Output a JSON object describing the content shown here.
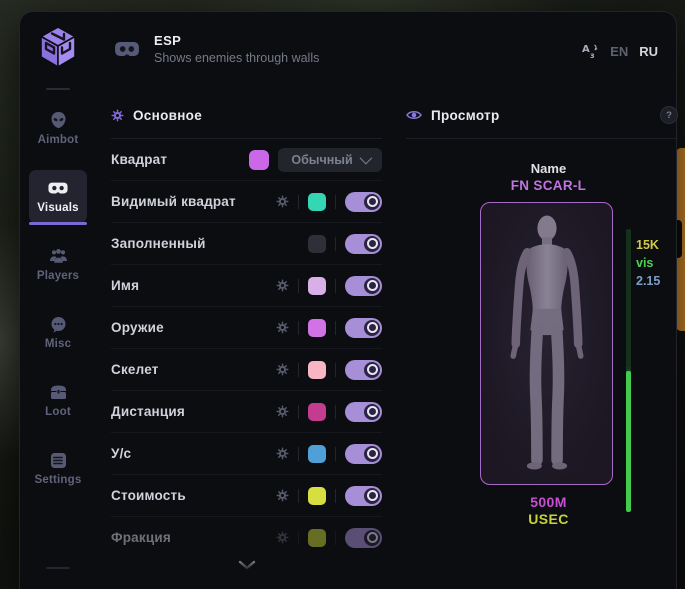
{
  "header": {
    "title": "ESP",
    "subtitle": "Shows enemies through walls",
    "languages": [
      {
        "code": "EN",
        "active": false
      },
      {
        "code": "RU",
        "active": true
      }
    ]
  },
  "sidebar": {
    "items": [
      {
        "id": "aimbot",
        "label": "Aimbot",
        "icon": "alien-icon",
        "active": false
      },
      {
        "id": "visuals",
        "label": "Visuals",
        "icon": "goggles-icon",
        "active": true
      },
      {
        "id": "players",
        "label": "Players",
        "icon": "players-icon",
        "active": false
      },
      {
        "id": "misc",
        "label": "Misc",
        "icon": "chat-icon",
        "active": false
      },
      {
        "id": "loot",
        "label": "Loot",
        "icon": "chest-icon",
        "active": false
      },
      {
        "id": "settings",
        "label": "Settings",
        "icon": "list-icon",
        "active": false
      }
    ]
  },
  "main_section": {
    "title": "Основное",
    "rows": [
      {
        "id": "square",
        "label": "Квадрат",
        "gear": false,
        "swatch": "#cb68e8",
        "control": "dropdown",
        "dropdown_value": "Обычный"
      },
      {
        "id": "visible-square",
        "label": "Видимый квадрат",
        "gear": true,
        "swatch": "#35d6b4",
        "control": "toggle",
        "enabled": true
      },
      {
        "id": "filled",
        "label": "Заполненный",
        "gear": false,
        "swatch": "#2e2f38",
        "control": "toggle",
        "enabled": true
      },
      {
        "id": "name",
        "label": "Имя",
        "gear": true,
        "swatch": "#d9afe8",
        "control": "toggle",
        "enabled": true
      },
      {
        "id": "weapon",
        "label": "Оружие",
        "gear": true,
        "swatch": "#d173e6",
        "control": "toggle",
        "enabled": true
      },
      {
        "id": "skeleton",
        "label": "Скелет",
        "gear": true,
        "swatch": "#f8b6c4",
        "control": "toggle",
        "enabled": true
      },
      {
        "id": "distance",
        "label": "Дистанция",
        "gear": true,
        "swatch": "#c23c90",
        "control": "toggle",
        "enabled": true
      },
      {
        "id": "us",
        "label": "У/с",
        "gear": true,
        "swatch": "#4f9fd9",
        "control": "toggle",
        "enabled": true
      },
      {
        "id": "value",
        "label": "Стоимость",
        "gear": true,
        "swatch": "#d7de3f",
        "control": "toggle",
        "enabled": true
      },
      {
        "id": "faction",
        "label": "Фракция",
        "gear": true,
        "swatch": "#c2cf35",
        "control": "toggle",
        "enabled": true,
        "faded": true
      }
    ]
  },
  "preview_section": {
    "title": "Просмотр",
    "help_badge": "?",
    "target_name_label": "Name",
    "weapon_name": "FN SCAR-L",
    "stats": {
      "value": "15K",
      "visibility": "vis",
      "distance": "2.15"
    },
    "health_percent": 50,
    "price": "500M",
    "faction": "USEC"
  },
  "colors": {
    "accent": "#8b77d9",
    "toggle_on": "#a78fd8",
    "health_fill": "#44ca4d",
    "weapon_text": "#c173e0",
    "price_text": "#c74fd4",
    "faction_text": "#c6d33b",
    "stat_value": "#d3c84a",
    "stat_vis": "#4cd157",
    "stat_distance": "#7b9fc7"
  }
}
